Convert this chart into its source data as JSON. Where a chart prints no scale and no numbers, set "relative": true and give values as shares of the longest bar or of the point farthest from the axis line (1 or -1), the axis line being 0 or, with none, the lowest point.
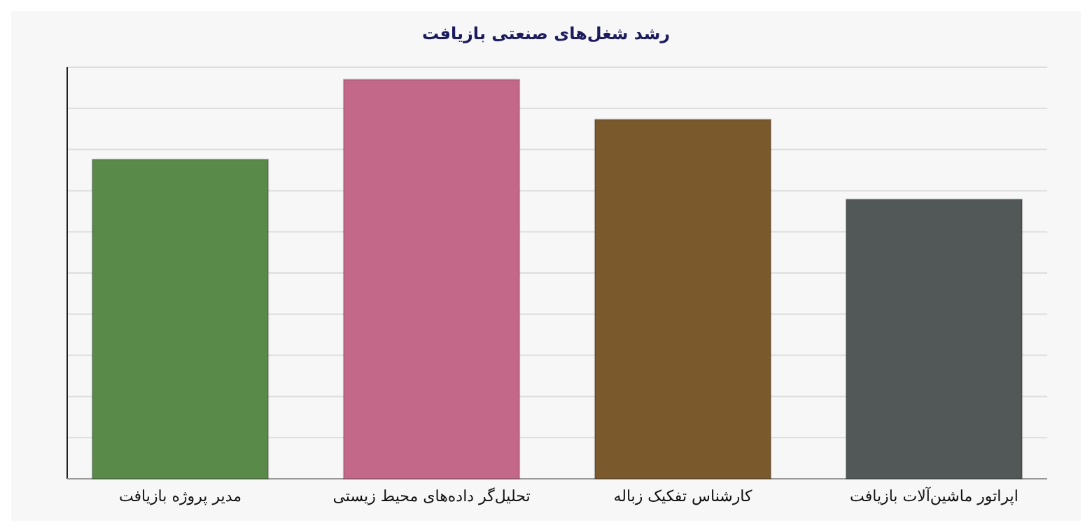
{
  "chart_data": {
    "type": "bar",
    "title": "رشد شغل‌های  صنعتی بازیافت",
    "relative": true,
    "grid": "y",
    "categories": [
      "مدیر پروژه بازیافت",
      "تحلیل‌گر داده‌های  محیط  زیستی",
      "کارشناس تفکیک زباله",
      "اپراتور ماشین‌آلات  بازیافت"
    ],
    "values": [
      0.8,
      1,
      0.9,
      0.7
    ],
    "colors": [
      "#5a8a4a",
      "#c4688a",
      "#7a5a2c",
      "#525858"
    ]
  }
}
